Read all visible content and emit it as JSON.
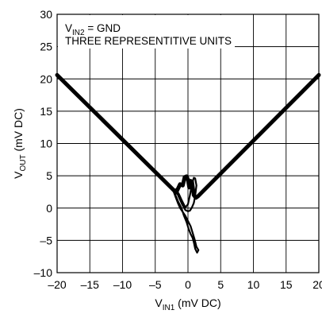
{
  "chart_data": {
    "type": "line",
    "title": "",
    "xlabel": {
      "main": "V",
      "sub": "IN1",
      "unit": " (mV DC)"
    },
    "ylabel": {
      "main": "V",
      "sub": "OUT",
      "unit": " (mV DC)"
    },
    "xlim": [
      -20,
      20
    ],
    "ylim": [
      -10,
      30
    ],
    "xticks": [
      -20,
      -15,
      -10,
      -5,
      0,
      5,
      10,
      15,
      20
    ],
    "yticks": [
      -10,
      -5,
      0,
      5,
      10,
      15,
      20,
      25,
      30
    ],
    "xtick_labels": [
      "–20",
      "–15",
      "–10",
      "–5",
      "0",
      "5",
      "10",
      "15",
      "20"
    ],
    "ytick_labels": [
      "–10",
      "–5",
      "0",
      "5",
      "10",
      "15",
      "20",
      "25",
      "30"
    ],
    "grid": true,
    "annotations": [
      {
        "main": "V",
        "sub": "IN2",
        "rest": " = GND"
      },
      {
        "text": "THREE REPRESENTITIVE UNITS"
      }
    ],
    "series": [
      {
        "x": [
          -20,
          -2.5,
          -1.8,
          -1.2,
          -0.8,
          -0.5,
          -0.2,
          0.0,
          0.2,
          0.4,
          0.6,
          0.9,
          1.2,
          1.5,
          20
        ],
        "y": [
          20.6,
          3.1,
          2.4,
          3.7,
          3.5,
          4.8,
          4.9,
          4.4,
          3.2,
          4.2,
          4.1,
          2.0,
          1.6,
          1.8,
          20.6
        ]
      },
      {
        "x": [
          -2.2,
          -1.9,
          -1.5,
          -1.0,
          -0.6,
          -0.2,
          0.1,
          0.4,
          0.7,
          0.9,
          1.1,
          1.4,
          1.6,
          1.3,
          1.0,
          0.7,
          0.4,
          0.0,
          -0.4,
          -0.8,
          -1.2,
          -1.5,
          -1.8,
          -2.2
        ],
        "y": [
          3.0,
          2.0,
          1.0,
          0.0,
          -1.2,
          -2.2,
          -3.2,
          -4.0,
          -4.6,
          -5.3,
          -6.3,
          -6.9,
          -6.5,
          -6.0,
          -4.8,
          -3.8,
          -2.8,
          -2.0,
          -1.2,
          -0.6,
          0.0,
          0.7,
          1.5,
          2.6
        ]
      },
      {
        "x": [
          -1.9,
          -1.4,
          -0.9,
          -0.4,
          0.0,
          0.3,
          0.6,
          0.9,
          1.1,
          1.3,
          1.1,
          0.9,
          0.6,
          0.3,
          0.0,
          -0.4,
          -0.9,
          -1.4,
          -1.9
        ],
        "y": [
          2.9,
          2.2,
          1.1,
          0.1,
          0.6,
          2.0,
          3.7,
          4.7,
          4.6,
          3.5,
          1.9,
          0.8,
          0.1,
          -0.4,
          -0.5,
          -0.3,
          0.6,
          1.7,
          2.9
        ]
      }
    ]
  }
}
